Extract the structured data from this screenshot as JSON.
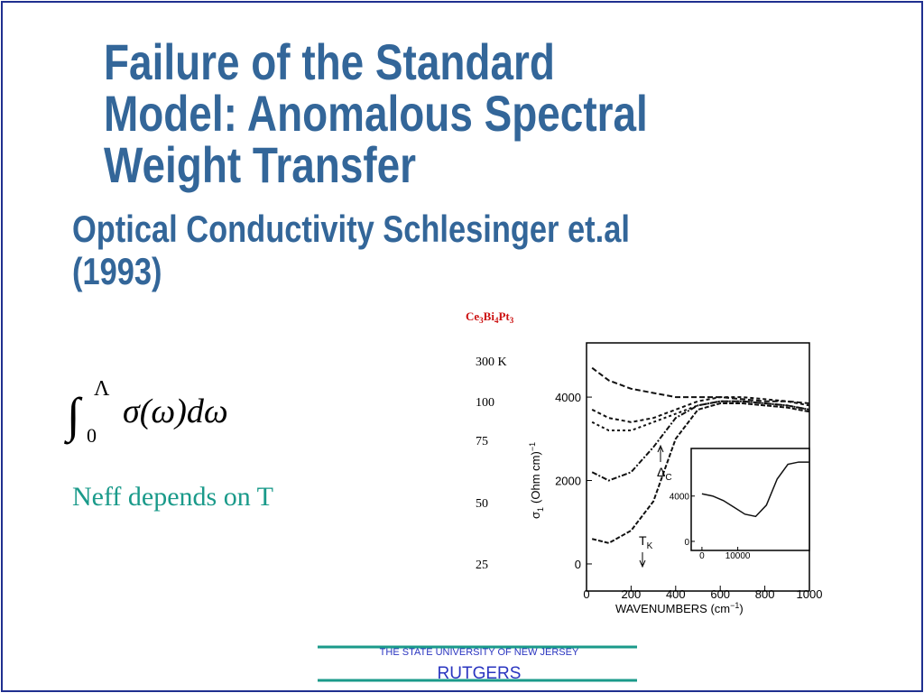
{
  "slide": {
    "title": [
      "Failure of the Standard",
      "Model: Anomalous Spectral",
      "Weight Transfer"
    ],
    "subtitle": [
      "Optical Conductivity Schlesinger et.al",
      "(1993)"
    ],
    "formula": {
      "integral": "∫",
      "lower": "0",
      "upper": "Λ",
      "integrand": "σ(ω)dω"
    },
    "note": "Neff depends on T",
    "footer": {
      "university": "THE STATE UNIVERSITY OF NEW JERSEY",
      "name": "RUTGERS"
    }
  },
  "figure": {
    "type": "line",
    "compound": [
      "Ce",
      "3",
      "Bi",
      "4",
      "Pt",
      "3"
    ],
    "x_label": [
      "WAVENUMBERS (cm",
      "−1",
      ")"
    ],
    "y_label": [
      "σ",
      "1",
      "(Ohm cm)",
      "−1"
    ],
    "annotations": [
      [
        "Δ",
        "C"
      ],
      [
        "T",
        "K"
      ]
    ],
    "x": [
      25,
      100,
      200,
      300,
      400,
      500,
      600,
      700,
      800,
      900,
      1000
    ],
    "series": [
      {
        "name": "300 K",
        "values": [
          4700,
          4400,
          4200,
          4100,
          4000,
          4000,
          4000,
          3950,
          3900,
          3900,
          3850
        ]
      },
      {
        "name": "100",
        "values": [
          3700,
          3500,
          3400,
          3500,
          3700,
          3900,
          4000,
          4000,
          3950,
          3900,
          3800
        ]
      },
      {
        "name": "75",
        "values": [
          3400,
          3200,
          3200,
          3400,
          3600,
          3800,
          3900,
          3900,
          3850,
          3800,
          3700
        ]
      },
      {
        "name": "50",
        "values": [
          2200,
          2000,
          2200,
          2800,
          3500,
          3800,
          3900,
          3900,
          3850,
          3800,
          3700
        ]
      },
      {
        "name": "25",
        "values": [
          600,
          500,
          800,
          1500,
          3000,
          3700,
          3850,
          3850,
          3800,
          3750,
          3650
        ]
      }
    ],
    "xlim": [
      0,
      1000
    ],
    "xticks": [
      0,
      200,
      400,
      600,
      800,
      1000
    ],
    "ylim": [
      -650,
      5300
    ],
    "yticks": [
      0,
      2000,
      4000
    ],
    "inset": {
      "x": [
        0,
        3000,
        6000,
        9000,
        12000,
        15000,
        18000,
        21000,
        24000,
        27000,
        30000
      ],
      "values": [
        4200,
        4000,
        3600,
        3000,
        2400,
        2200,
        3200,
        5500,
        6800,
        7000,
        7000
      ],
      "xlim": [
        -3000,
        30000
      ],
      "xticks": [
        0,
        10000
      ],
      "ylim": [
        -800,
        8200
      ],
      "yticks": [
        0,
        4000
      ]
    }
  }
}
